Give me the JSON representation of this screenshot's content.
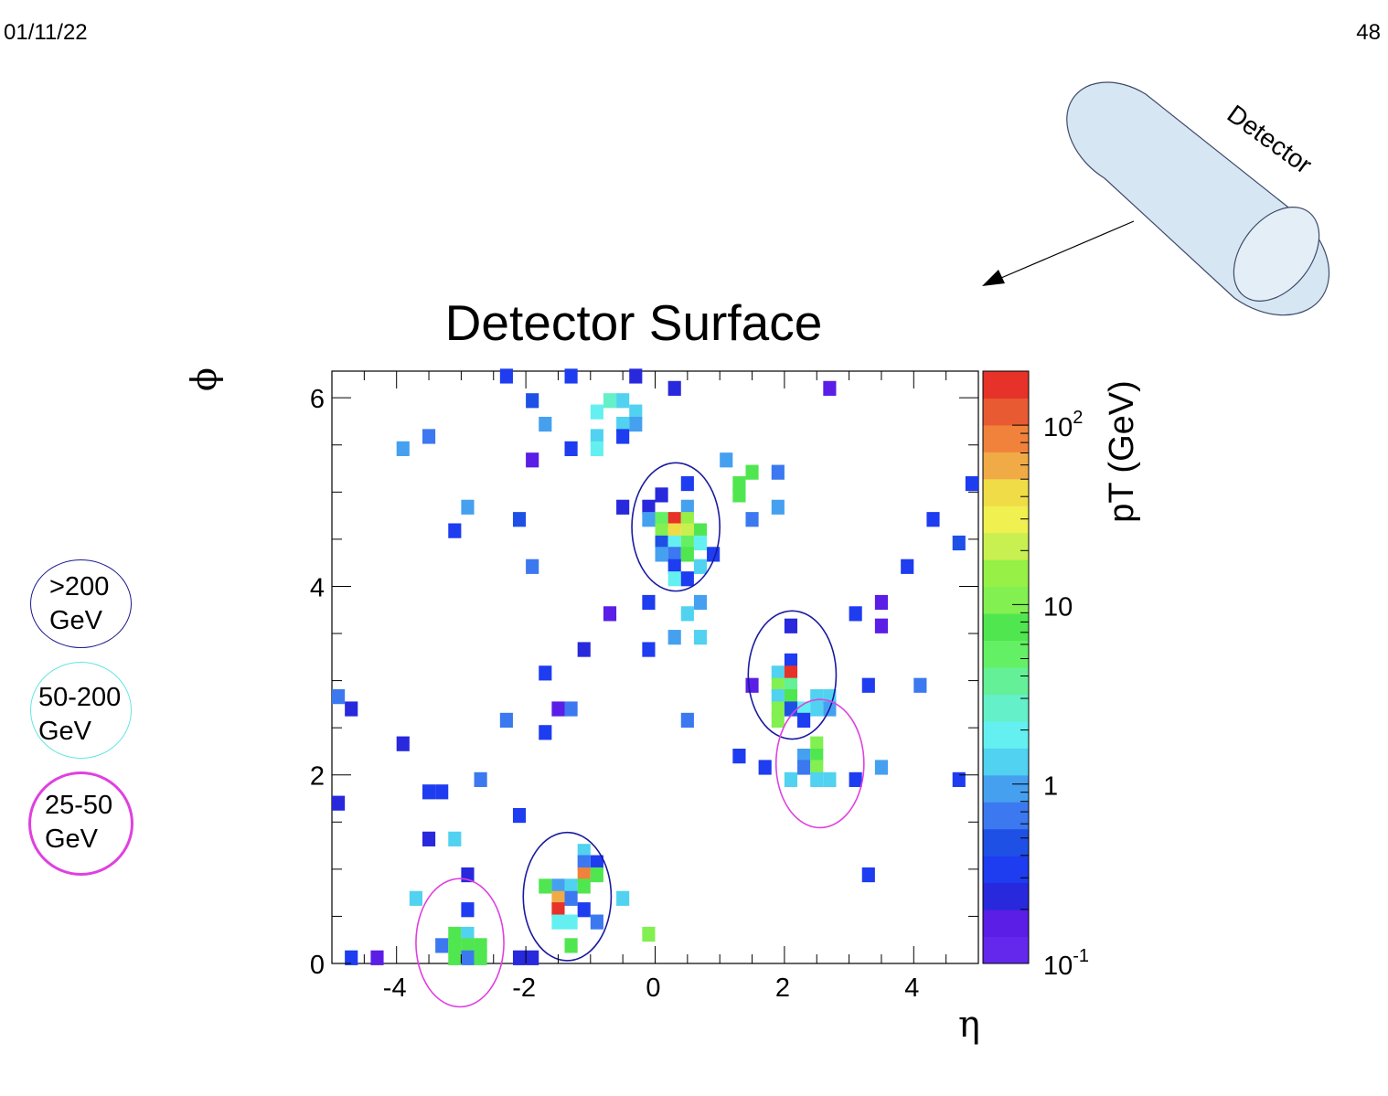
{
  "slide": {
    "date": "01/11/22",
    "page_number": "48"
  },
  "detector_label": "Detector",
  "legend": [
    {
      "label_lines": [
        ">200",
        "GeV"
      ],
      "color": "#1a1a8c"
    },
    {
      "label_lines": [
        "50-200",
        "GeV"
      ],
      "color": "#66e6e0"
    },
    {
      "label_lines": [
        "25-50",
        "GeV"
      ],
      "color": "#e040e0"
    }
  ],
  "chart_data": {
    "type": "heatmap",
    "title": "Detector Surface",
    "xlabel": "η",
    "ylabel": "ϕ",
    "colorbar_label": "pT (GeV)",
    "color_scale": "log",
    "xlim": [
      -5,
      5
    ],
    "ylim": [
      0,
      6.283
    ],
    "zlim": [
      0.1,
      200
    ],
    "xticks": [
      "-4",
      "-2",
      "0",
      "2",
      "4"
    ],
    "yticks": [
      "0",
      "2",
      "4",
      "6"
    ],
    "colorbar_ticks": [
      {
        "base": "10",
        "exp": "-1",
        "value": 0.1
      },
      {
        "base": "1",
        "exp": "",
        "value": 1
      },
      {
        "base": "10",
        "exp": "",
        "value": 10
      },
      {
        "base": "10",
        "exp": "2",
        "value": 100
      }
    ],
    "bin_width": {
      "eta": 0.2,
      "phi": 0.1571
    },
    "palette": [
      "#6428ec",
      "#5a1ee6",
      "#2828dc",
      "#1e3cf0",
      "#1e50e6",
      "#3c78f0",
      "#46a0f0",
      "#50d2f0",
      "#64f0f0",
      "#64f0c8",
      "#64f096",
      "#64f064",
      "#50e650",
      "#82f050",
      "#96f046",
      "#c8f050",
      "#f0f050",
      "#f0dc46",
      "#f0aa46",
      "#f0823c",
      "#e85a32",
      "#e63228"
    ],
    "bins": [
      {
        "eta": -2.3,
        "phi": 6.23,
        "pt": 0.3
      },
      {
        "eta": -1.3,
        "phi": 6.23,
        "pt": 0.3
      },
      {
        "eta": -0.3,
        "phi": 6.23,
        "pt": 0.2
      },
      {
        "eta": 0.3,
        "phi": 6.1,
        "pt": 0.2
      },
      {
        "eta": 2.7,
        "phi": 6.1,
        "pt": 0.15
      },
      {
        "eta": -1.9,
        "phi": 5.97,
        "pt": 0.5
      },
      {
        "eta": -0.7,
        "phi": 5.97,
        "pt": 3
      },
      {
        "eta": -0.5,
        "phi": 5.97,
        "pt": 1.2
      },
      {
        "eta": -0.9,
        "phi": 5.85,
        "pt": 2
      },
      {
        "eta": -0.3,
        "phi": 5.85,
        "pt": 1.3
      },
      {
        "eta": -1.7,
        "phi": 5.72,
        "pt": 1.1
      },
      {
        "eta": -0.5,
        "phi": 5.72,
        "pt": 1.5
      },
      {
        "eta": -0.3,
        "phi": 5.72,
        "pt": 1
      },
      {
        "eta": -0.9,
        "phi": 5.59,
        "pt": 1.5
      },
      {
        "eta": -0.5,
        "phi": 5.59,
        "pt": 0.3
      },
      {
        "eta": -3.5,
        "phi": 5.59,
        "pt": 0.6
      },
      {
        "eta": -3.9,
        "phi": 5.46,
        "pt": 0.8
      },
      {
        "eta": -1.3,
        "phi": 5.46,
        "pt": 0.3
      },
      {
        "eta": -0.9,
        "phi": 5.46,
        "pt": 2
      },
      {
        "eta": -1.9,
        "phi": 5.34,
        "pt": 0.15
      },
      {
        "eta": 1.1,
        "phi": 5.34,
        "pt": 1.1
      },
      {
        "eta": 1.5,
        "phi": 5.21,
        "pt": 8
      },
      {
        "eta": 1.9,
        "phi": 5.21,
        "pt": 0.7
      },
      {
        "eta": 1.3,
        "phi": 5.09,
        "pt": 8
      },
      {
        "eta": 0.5,
        "phi": 5.09,
        "pt": 0.3
      },
      {
        "eta": 4.9,
        "phi": 5.09,
        "pt": 0.3
      },
      {
        "eta": 1.3,
        "phi": 4.97,
        "pt": 8
      },
      {
        "eta": 0.1,
        "phi": 4.97,
        "pt": 0.2
      },
      {
        "eta": -2.9,
        "phi": 4.84,
        "pt": 0.8
      },
      {
        "eta": -0.5,
        "phi": 4.84,
        "pt": 0.2
      },
      {
        "eta": -0.1,
        "phi": 4.84,
        "pt": 0.2
      },
      {
        "eta": 0.5,
        "phi": 4.84,
        "pt": 1
      },
      {
        "eta": 1.9,
        "phi": 4.84,
        "pt": 0.8
      },
      {
        "eta": -2.1,
        "phi": 4.71,
        "pt": 0.4
      },
      {
        "eta": -0.1,
        "phi": 4.71,
        "pt": 1
      },
      {
        "eta": 0.1,
        "phi": 4.71,
        "pt": 6
      },
      {
        "eta": 0.3,
        "phi": 4.71,
        "pt": 150
      },
      {
        "eta": 0.5,
        "phi": 4.71,
        "pt": 15
      },
      {
        "eta": 1.5,
        "phi": 4.71,
        "pt": 0.7
      },
      {
        "eta": 4.3,
        "phi": 4.71,
        "pt": 0.3
      },
      {
        "eta": -3.1,
        "phi": 4.59,
        "pt": 0.3
      },
      {
        "eta": 0.1,
        "phi": 4.59,
        "pt": 10
      },
      {
        "eta": 0.3,
        "phi": 4.59,
        "pt": 40
      },
      {
        "eta": 0.5,
        "phi": 4.59,
        "pt": 20
      },
      {
        "eta": 0.7,
        "phi": 4.59,
        "pt": 8
      },
      {
        "eta": 0.1,
        "phi": 4.46,
        "pt": 0.5
      },
      {
        "eta": 0.3,
        "phi": 4.46,
        "pt": 2
      },
      {
        "eta": 0.5,
        "phi": 4.46,
        "pt": 6
      },
      {
        "eta": 0.7,
        "phi": 4.46,
        "pt": 2
      },
      {
        "eta": 4.7,
        "phi": 4.46,
        "pt": 0.5
      },
      {
        "eta": 0.1,
        "phi": 4.34,
        "pt": 0.8
      },
      {
        "eta": 0.3,
        "phi": 4.34,
        "pt": 0.7
      },
      {
        "eta": 0.5,
        "phi": 4.34,
        "pt": 8
      },
      {
        "eta": 0.9,
        "phi": 4.34,
        "pt": 0.3
      },
      {
        "eta": -1.9,
        "phi": 4.21,
        "pt": 0.7
      },
      {
        "eta": 0.3,
        "phi": 4.21,
        "pt": 0.3
      },
      {
        "eta": 0.7,
        "phi": 4.21,
        "pt": 1.5
      },
      {
        "eta": 3.9,
        "phi": 4.21,
        "pt": 0.3
      },
      {
        "eta": 0.3,
        "phi": 4.08,
        "pt": 2
      },
      {
        "eta": 0.5,
        "phi": 4.08,
        "pt": 0.3
      },
      {
        "eta": -0.1,
        "phi": 3.83,
        "pt": 0.3
      },
      {
        "eta": 0.7,
        "phi": 3.83,
        "pt": 0.8
      },
      {
        "eta": 3.5,
        "phi": 3.83,
        "pt": 0.15
      },
      {
        "eta": -0.7,
        "phi": 3.71,
        "pt": 0.15
      },
      {
        "eta": 0.5,
        "phi": 3.71,
        "pt": 1.2
      },
      {
        "eta": 3.1,
        "phi": 3.71,
        "pt": 0.3
      },
      {
        "eta": 2.1,
        "phi": 3.58,
        "pt": 0.2
      },
      {
        "eta": 3.5,
        "phi": 3.58,
        "pt": 0.15
      },
      {
        "eta": 0.3,
        "phi": 3.46,
        "pt": 0.8
      },
      {
        "eta": 0.7,
        "phi": 3.46,
        "pt": 1.2
      },
      {
        "eta": -1.1,
        "phi": 3.33,
        "pt": 0.2
      },
      {
        "eta": -0.1,
        "phi": 3.33,
        "pt": 0.3
      },
      {
        "eta": 2.1,
        "phi": 3.21,
        "pt": 0.3
      },
      {
        "eta": -1.7,
        "phi": 3.08,
        "pt": 0.3
      },
      {
        "eta": 1.9,
        "phi": 3.08,
        "pt": 1.5
      },
      {
        "eta": 2.1,
        "phi": 3.08,
        "pt": 180
      },
      {
        "eta": 1.5,
        "phi": 2.95,
        "pt": 0.15
      },
      {
        "eta": 1.9,
        "phi": 2.95,
        "pt": 10
      },
      {
        "eta": 2.1,
        "phi": 2.95,
        "pt": 4
      },
      {
        "eta": 3.3,
        "phi": 2.95,
        "pt": 0.3
      },
      {
        "eta": 4.1,
        "phi": 2.95,
        "pt": 0.7
      },
      {
        "eta": -4.9,
        "phi": 2.83,
        "pt": 0.7
      },
      {
        "eta": 1.9,
        "phi": 2.83,
        "pt": 1.5
      },
      {
        "eta": 2.1,
        "phi": 2.83,
        "pt": 8
      },
      {
        "eta": 2.5,
        "phi": 2.83,
        "pt": 1.2
      },
      {
        "eta": 2.7,
        "phi": 2.83,
        "pt": 1.2
      },
      {
        "eta": -4.7,
        "phi": 2.7,
        "pt": 0.2
      },
      {
        "eta": -1.5,
        "phi": 2.7,
        "pt": 0.15
      },
      {
        "eta": -1.3,
        "phi": 2.7,
        "pt": 0.7
      },
      {
        "eta": 1.9,
        "phi": 2.7,
        "pt": 10
      },
      {
        "eta": 2.1,
        "phi": 2.7,
        "pt": 0.5
      },
      {
        "eta": 2.3,
        "phi": 2.7,
        "pt": 2
      },
      {
        "eta": 2.5,
        "phi": 2.7,
        "pt": 1.2
      },
      {
        "eta": 2.7,
        "phi": 2.7,
        "pt": 1
      },
      {
        "eta": -2.3,
        "phi": 2.58,
        "pt": 0.7
      },
      {
        "eta": 0.5,
        "phi": 2.58,
        "pt": 0.7
      },
      {
        "eta": 1.9,
        "phi": 2.58,
        "pt": 10
      },
      {
        "eta": 2.3,
        "phi": 2.58,
        "pt": 0.3
      },
      {
        "eta": -1.7,
        "phi": 2.45,
        "pt": 0.3
      },
      {
        "eta": -3.9,
        "phi": 2.33,
        "pt": 0.2
      },
      {
        "eta": 2.5,
        "phi": 2.33,
        "pt": 10
      },
      {
        "eta": 1.3,
        "phi": 2.2,
        "pt": 0.3
      },
      {
        "eta": 2.3,
        "phi": 2.2,
        "pt": 0.8
      },
      {
        "eta": 2.5,
        "phi": 2.2,
        "pt": 8
      },
      {
        "eta": 1.7,
        "phi": 2.08,
        "pt": 0.3
      },
      {
        "eta": 2.3,
        "phi": 2.08,
        "pt": 0.7
      },
      {
        "eta": 2.5,
        "phi": 2.08,
        "pt": 10
      },
      {
        "eta": 3.5,
        "phi": 2.08,
        "pt": 0.8
      },
      {
        "eta": -2.7,
        "phi": 1.95,
        "pt": 0.7
      },
      {
        "eta": 2.1,
        "phi": 1.95,
        "pt": 1.2
      },
      {
        "eta": 2.5,
        "phi": 1.95,
        "pt": 1.2
      },
      {
        "eta": 2.7,
        "phi": 1.95,
        "pt": 1.2
      },
      {
        "eta": 3.1,
        "phi": 1.95,
        "pt": 0.3
      },
      {
        "eta": 4.7,
        "phi": 1.95,
        "pt": 0.3
      },
      {
        "eta": -3.5,
        "phi": 1.82,
        "pt": 0.3
      },
      {
        "eta": -3.3,
        "phi": 1.82,
        "pt": 0.3
      },
      {
        "eta": -4.9,
        "phi": 1.7,
        "pt": 0.2
      },
      {
        "eta": -2.1,
        "phi": 1.57,
        "pt": 0.3
      },
      {
        "eta": -3.5,
        "phi": 1.32,
        "pt": 0.2
      },
      {
        "eta": -3.1,
        "phi": 1.32,
        "pt": 1.2
      },
      {
        "eta": -1.1,
        "phi": 1.19,
        "pt": 1.5
      },
      {
        "eta": -0.9,
        "phi": 1.07,
        "pt": 0.3
      },
      {
        "eta": -1.1,
        "phi": 1.07,
        "pt": 0.6
      },
      {
        "eta": -2.9,
        "phi": 0.94,
        "pt": 0.2
      },
      {
        "eta": -1.1,
        "phi": 0.94,
        "pt": 80
      },
      {
        "eta": -0.9,
        "phi": 0.94,
        "pt": 8
      },
      {
        "eta": 3.3,
        "phi": 0.94,
        "pt": 0.3
      },
      {
        "eta": -1.7,
        "phi": 0.82,
        "pt": 8
      },
      {
        "eta": -1.5,
        "phi": 0.82,
        "pt": 0.8
      },
      {
        "eta": -1.3,
        "phi": 0.82,
        "pt": 1.5
      },
      {
        "eta": -1.1,
        "phi": 0.82,
        "pt": 8
      },
      {
        "eta": -3.7,
        "phi": 0.69,
        "pt": 1.2
      },
      {
        "eta": -1.5,
        "phi": 0.69,
        "pt": 60
      },
      {
        "eta": -1.3,
        "phi": 0.69,
        "pt": 0.7
      },
      {
        "eta": -0.5,
        "phi": 0.69,
        "pt": 1.2
      },
      {
        "eta": -2.9,
        "phi": 0.57,
        "pt": 0.3
      },
      {
        "eta": -1.5,
        "phi": 0.57,
        "pt": 180
      },
      {
        "eta": -1.1,
        "phi": 0.57,
        "pt": 0.3
      },
      {
        "eta": -1.5,
        "phi": 0.44,
        "pt": 2
      },
      {
        "eta": -1.3,
        "phi": 0.44,
        "pt": 2
      },
      {
        "eta": -0.9,
        "phi": 0.44,
        "pt": 0.7
      },
      {
        "eta": -3.1,
        "phi": 0.31,
        "pt": 8
      },
      {
        "eta": -2.9,
        "phi": 0.31,
        "pt": 1.5
      },
      {
        "eta": -0.1,
        "phi": 0.31,
        "pt": 10
      },
      {
        "eta": -3.3,
        "phi": 0.19,
        "pt": 0.7
      },
      {
        "eta": -3.1,
        "phi": 0.19,
        "pt": 8
      },
      {
        "eta": -2.9,
        "phi": 0.19,
        "pt": 8
      },
      {
        "eta": -2.7,
        "phi": 0.19,
        "pt": 8
      },
      {
        "eta": -1.3,
        "phi": 0.19,
        "pt": 8
      },
      {
        "eta": -4.7,
        "phi": 0.06,
        "pt": 0.3
      },
      {
        "eta": -4.3,
        "phi": 0.06,
        "pt": 0.15
      },
      {
        "eta": -3.1,
        "phi": 0.06,
        "pt": 8
      },
      {
        "eta": -2.9,
        "phi": 0.06,
        "pt": 0.7
      },
      {
        "eta": -2.7,
        "phi": 0.06,
        "pt": 8
      },
      {
        "eta": -2.1,
        "phi": 0.06,
        "pt": 0.2
      },
      {
        "eta": -1.9,
        "phi": 0.06,
        "pt": 0.2
      }
    ],
    "jet_circles": [
      {
        "eta": 0.32,
        "phi": 4.63,
        "r_eta": 0.68,
        "r_phi": 0.68,
        "category": ">200 GeV",
        "color": "#1a1aa0"
      },
      {
        "eta": 2.12,
        "phi": 3.06,
        "r_eta": 0.68,
        "r_phi": 0.68,
        "category": ">200 GeV",
        "color": "#1a1aa0"
      },
      {
        "eta": -1.36,
        "phi": 0.71,
        "r_eta": 0.68,
        "r_phi": 0.68,
        "category": ">200 GeV",
        "color": "#1a1aa0"
      },
      {
        "eta": 2.55,
        "phi": 2.12,
        "r_eta": 0.68,
        "r_phi": 0.68,
        "category": "25-50 GeV",
        "color": "#e040e0"
      },
      {
        "eta": -3.02,
        "phi": 0.22,
        "r_eta": 0.68,
        "r_phi": 0.68,
        "category": "25-50 GeV",
        "color": "#e040e0"
      }
    ]
  }
}
